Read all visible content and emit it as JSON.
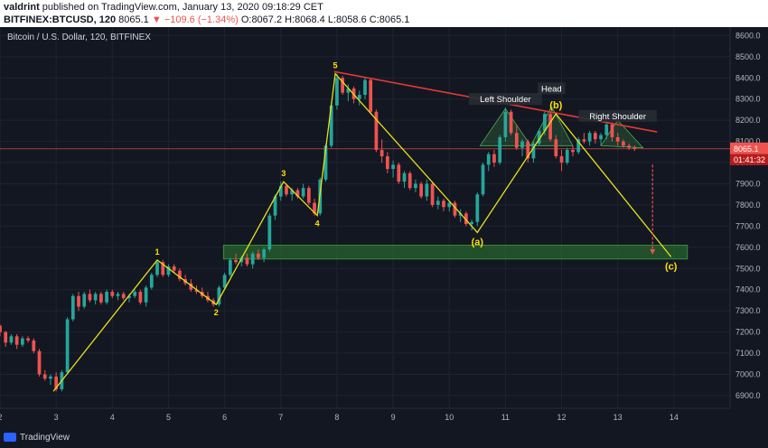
{
  "header": {
    "user": "valdrint",
    "published_text": "published on TradingView.com, January 13, 2020 09:18:29 CET",
    "symbol": "BITFINEX:BTCUSD, 120",
    "last": "8065.1",
    "change": "−109.6 (−1.34%)",
    "open": "O:8067.2",
    "high": "H:8068.4",
    "low": "L:8058.6",
    "close": "C:8065.1"
  },
  "chart_title": "Bitcoin / U.S. Dollar, 120, BITFINEX",
  "footer_brand": "TradingView",
  "colors": {
    "up": "#26a69a",
    "down": "#ef5350",
    "zigzag": "#e8e01a",
    "trend": "#e53935",
    "zone": "#2e7d32",
    "label": "#ffe100"
  },
  "chart_data": {
    "type": "candlestick",
    "x_ticks": [
      "2",
      "3",
      "4",
      "5",
      "6",
      "7",
      "8",
      "9",
      "10",
      "11",
      "12",
      "13",
      "14"
    ],
    "x_tick_pos": [
      2,
      3,
      4,
      5,
      6,
      7,
      8,
      9,
      10,
      11,
      12,
      13,
      14
    ],
    "y_ticks": [
      6900,
      7000,
      7100,
      7200,
      7300,
      7400,
      7500,
      7600,
      7700,
      7800,
      7900,
      8000,
      8100,
      8200,
      8300,
      8400,
      8500,
      8600
    ],
    "ylim": [
      6840,
      8640
    ],
    "xlim": [
      2,
      15
    ],
    "price_label": "8065.1",
    "countdown_label": "01:41:32",
    "price_line": 8065.1,
    "support_zone": {
      "from": 7545,
      "to": 7610,
      "x_start": 5.98,
      "x_end": 14.24
    },
    "zigzag": [
      {
        "x": 2.95,
        "y": 6920
      },
      {
        "x": 4.8,
        "y": 7540,
        "label": "1"
      },
      {
        "x": 5.85,
        "y": 7330,
        "label": "2"
      },
      {
        "x": 7.05,
        "y": 7910,
        "label": "3"
      },
      {
        "x": 7.65,
        "y": 7750,
        "label": "4"
      },
      {
        "x": 7.97,
        "y": 8420,
        "label": "5"
      },
      {
        "x": 10.5,
        "y": 7670,
        "label": "(a)"
      },
      {
        "x": 11.9,
        "y": 8230,
        "label": "(b)"
      },
      {
        "x": 13.95,
        "y": 7555,
        "label": "(c)"
      }
    ],
    "trendline": [
      {
        "x": 7.95,
        "y": 8430
      },
      {
        "x": 13.7,
        "y": 8145
      }
    ],
    "pattern_labels": [
      {
        "text": "Left Shoulder",
        "x": 11.0,
        "y": 8290
      },
      {
        "text": "Head",
        "x": 11.82,
        "y": 8340
      },
      {
        "text": "Right Shoulder",
        "x": 13.0,
        "y": 8210
      }
    ],
    "projection_arrow": {
      "x": 13.62,
      "from": 7990,
      "to": 7570
    },
    "candles": [
      [
        2.0,
        7230,
        7235,
        7180,
        7200
      ],
      [
        2.1,
        7200,
        7205,
        7130,
        7150
      ],
      [
        2.2,
        7150,
        7190,
        7140,
        7180
      ],
      [
        2.3,
        7180,
        7190,
        7120,
        7140
      ],
      [
        2.4,
        7140,
        7180,
        7130,
        7170
      ],
      [
        2.5,
        7170,
        7180,
        7150,
        7160
      ],
      [
        2.6,
        7160,
        7170,
        7100,
        7110
      ],
      [
        2.7,
        7110,
        7120,
        6990,
        7000
      ],
      [
        2.8,
        7000,
        7020,
        6970,
        6980
      ],
      [
        2.9,
        6980,
        7000,
        6950,
        6990
      ],
      [
        3.0,
        6990,
        7010,
        6920,
        6930
      ],
      [
        3.1,
        6930,
        7020,
        6920,
        7010
      ],
      [
        3.2,
        7010,
        7270,
        7000,
        7260
      ],
      [
        3.3,
        7260,
        7380,
        7250,
        7370
      ],
      [
        3.4,
        7370,
        7390,
        7300,
        7320
      ],
      [
        3.5,
        7320,
        7390,
        7310,
        7380
      ],
      [
        3.6,
        7380,
        7400,
        7340,
        7350
      ],
      [
        3.7,
        7350,
        7390,
        7330,
        7380
      ],
      [
        3.8,
        7380,
        7390,
        7330,
        7340
      ],
      [
        3.9,
        7340,
        7400,
        7330,
        7390
      ],
      [
        4.0,
        7390,
        7400,
        7360,
        7370
      ],
      [
        4.1,
        7370,
        7390,
        7350,
        7380
      ],
      [
        4.2,
        7380,
        7390,
        7350,
        7360
      ],
      [
        4.3,
        7360,
        7380,
        7340,
        7370
      ],
      [
        4.4,
        7370,
        7400,
        7360,
        7390
      ],
      [
        4.5,
        7390,
        7400,
        7330,
        7340
      ],
      [
        4.6,
        7340,
        7420,
        7320,
        7410
      ],
      [
        4.7,
        7410,
        7480,
        7400,
        7470
      ],
      [
        4.8,
        7470,
        7540,
        7460,
        7530
      ],
      [
        4.9,
        7530,
        7540,
        7460,
        7470
      ],
      [
        5.0,
        7470,
        7520,
        7460,
        7510
      ],
      [
        5.1,
        7510,
        7520,
        7480,
        7490
      ],
      [
        5.2,
        7490,
        7500,
        7440,
        7450
      ],
      [
        5.3,
        7450,
        7470,
        7420,
        7430
      ],
      [
        5.4,
        7430,
        7450,
        7390,
        7400
      ],
      [
        5.5,
        7400,
        7420,
        7380,
        7390
      ],
      [
        5.6,
        7390,
        7410,
        7360,
        7370
      ],
      [
        5.7,
        7370,
        7390,
        7340,
        7350
      ],
      [
        5.8,
        7350,
        7360,
        7320,
        7330
      ],
      [
        5.9,
        7330,
        7420,
        7320,
        7410
      ],
      [
        6.0,
        7410,
        7480,
        7400,
        7470
      ],
      [
        6.1,
        7470,
        7550,
        7460,
        7540
      ],
      [
        6.2,
        7540,
        7570,
        7520,
        7530
      ],
      [
        6.3,
        7530,
        7560,
        7510,
        7550
      ],
      [
        6.4,
        7550,
        7570,
        7510,
        7520
      ],
      [
        6.5,
        7520,
        7580,
        7500,
        7570
      ],
      [
        6.6,
        7570,
        7590,
        7540,
        7550
      ],
      [
        6.7,
        7550,
        7600,
        7530,
        7590
      ],
      [
        6.8,
        7590,
        7760,
        7580,
        7750
      ],
      [
        6.9,
        7750,
        7850,
        7730,
        7840
      ],
      [
        7.0,
        7840,
        7910,
        7820,
        7890
      ],
      [
        7.1,
        7890,
        7900,
        7840,
        7850
      ],
      [
        7.2,
        7850,
        7880,
        7820,
        7870
      ],
      [
        7.3,
        7870,
        7880,
        7830,
        7840
      ],
      [
        7.4,
        7840,
        7900,
        7830,
        7880
      ],
      [
        7.5,
        7880,
        7890,
        7800,
        7810
      ],
      [
        7.6,
        7810,
        7830,
        7750,
        7760
      ],
      [
        7.7,
        7760,
        7930,
        7750,
        7920
      ],
      [
        7.8,
        7920,
        8090,
        7910,
        8080
      ],
      [
        7.9,
        8080,
        8280,
        8070,
        8270
      ],
      [
        8.0,
        8270,
        8420,
        8250,
        8400
      ],
      [
        8.1,
        8400,
        8410,
        8320,
        8330
      ],
      [
        8.2,
        8330,
        8370,
        8290,
        8350
      ],
      [
        8.3,
        8350,
        8360,
        8280,
        8300
      ],
      [
        8.4,
        8300,
        8340,
        8270,
        8320
      ],
      [
        8.5,
        8320,
        8400,
        8300,
        8390
      ],
      [
        8.6,
        8390,
        8400,
        8230,
        8240
      ],
      [
        8.7,
        8240,
        8250,
        8050,
        8060
      ],
      [
        8.8,
        8060,
        8110,
        8000,
        8030
      ],
      [
        8.9,
        8030,
        8050,
        7950,
        7970
      ],
      [
        9.0,
        7970,
        8010,
        7930,
        7990
      ],
      [
        9.1,
        7990,
        8000,
        7900,
        7910
      ],
      [
        9.2,
        7910,
        7960,
        7880,
        7950
      ],
      [
        9.3,
        7950,
        7960,
        7870,
        7880
      ],
      [
        9.4,
        7880,
        7920,
        7860,
        7900
      ],
      [
        9.5,
        7900,
        7910,
        7830,
        7840
      ],
      [
        9.6,
        7840,
        7920,
        7820,
        7900
      ],
      [
        9.7,
        7900,
        7910,
        7790,
        7800
      ],
      [
        9.8,
        7800,
        7840,
        7780,
        7820
      ],
      [
        9.9,
        7820,
        7830,
        7770,
        7790
      ],
      [
        10.0,
        7790,
        7820,
        7770,
        7810
      ],
      [
        10.1,
        7810,
        7820,
        7740,
        7750
      ],
      [
        10.2,
        7750,
        7780,
        7720,
        7760
      ],
      [
        10.3,
        7760,
        7770,
        7700,
        7710
      ],
      [
        10.4,
        7710,
        7730,
        7680,
        7720
      ],
      [
        10.5,
        7720,
        7860,
        7700,
        7850
      ],
      [
        10.6,
        7850,
        8000,
        7840,
        7990
      ],
      [
        10.7,
        7990,
        8050,
        7960,
        8040
      ],
      [
        10.8,
        8040,
        8060,
        7980,
        8000
      ],
      [
        10.9,
        8000,
        8130,
        7990,
        8120
      ],
      [
        11.0,
        8120,
        8260,
        8100,
        8240
      ],
      [
        11.1,
        8240,
        8250,
        8130,
        8140
      ],
      [
        11.2,
        8140,
        8180,
        8060,
        8070
      ],
      [
        11.3,
        8070,
        8110,
        8030,
        8100
      ],
      [
        11.4,
        8100,
        8110,
        8000,
        8020
      ],
      [
        11.5,
        8020,
        8100,
        8000,
        8090
      ],
      [
        11.6,
        8090,
        8160,
        8080,
        8150
      ],
      [
        11.7,
        8150,
        8240,
        8130,
        8230
      ],
      [
        11.8,
        8230,
        8240,
        8100,
        8110
      ],
      [
        11.9,
        8110,
        8130,
        8020,
        8030
      ],
      [
        12.0,
        8030,
        8060,
        7960,
        8000
      ],
      [
        12.1,
        8000,
        8070,
        7990,
        8060
      ],
      [
        12.2,
        8060,
        8080,
        8030,
        8050
      ],
      [
        12.3,
        8050,
        8120,
        8040,
        8110
      ],
      [
        12.4,
        8110,
        8140,
        8090,
        8100
      ],
      [
        12.5,
        8100,
        8150,
        8080,
        8140
      ],
      [
        12.6,
        8140,
        8150,
        8090,
        8110
      ],
      [
        12.7,
        8110,
        8140,
        8080,
        8130
      ],
      [
        12.8,
        8130,
        8200,
        8110,
        8180
      ],
      [
        12.9,
        8180,
        8190,
        8100,
        8120
      ],
      [
        13.0,
        8120,
        8140,
        8080,
        8100
      ],
      [
        13.1,
        8100,
        8110,
        8070,
        8080
      ],
      [
        13.2,
        8080,
        8090,
        8060,
        8070
      ],
      [
        13.3,
        8070,
        8080,
        8055,
        8065
      ]
    ]
  }
}
